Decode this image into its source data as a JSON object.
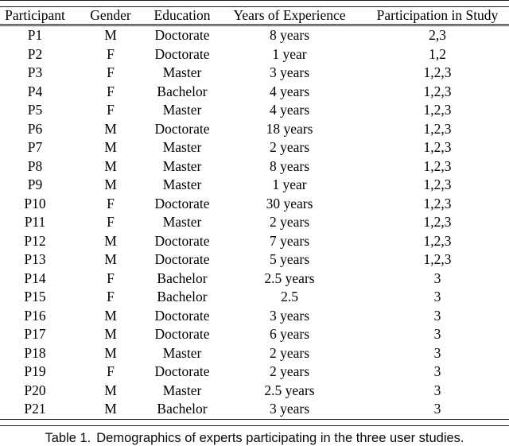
{
  "table": {
    "columns": [
      "Participant",
      "Gender",
      "Education",
      "Years of Experience",
      "Participation in Study"
    ],
    "rows": [
      [
        "P1",
        "M",
        "Doctorate",
        "8 years",
        "2,3"
      ],
      [
        "P2",
        "F",
        "Doctorate",
        "1 year",
        "1,2"
      ],
      [
        "P3",
        "F",
        "Master",
        "3 years",
        "1,2,3"
      ],
      [
        "P4",
        "F",
        "Bachelor",
        "4 years",
        "1,2,3"
      ],
      [
        "P5",
        "F",
        "Master",
        "4 years",
        "1,2,3"
      ],
      [
        "P6",
        "M",
        "Doctorate",
        "18 years",
        "1,2,3"
      ],
      [
        "P7",
        "M",
        "Master",
        "2 years",
        "1,2,3"
      ],
      [
        "P8",
        "M",
        "Master",
        "8 years",
        "1,2,3"
      ],
      [
        "P9",
        "M",
        "Master",
        "1 year",
        "1,2,3"
      ],
      [
        "P10",
        "F",
        "Doctorate",
        "30 years",
        "1,2,3"
      ],
      [
        "P11",
        "F",
        "Master",
        "2 years",
        "1,2,3"
      ],
      [
        "P12",
        "M",
        "Doctorate",
        "7 years",
        "1,2,3"
      ],
      [
        "P13",
        "M",
        "Doctorate",
        "5 years",
        "1,2,3"
      ],
      [
        "P14",
        "F",
        "Bachelor",
        "2.5 years",
        "3"
      ],
      [
        "P15",
        "F",
        "Bachelor",
        "2.5",
        "3"
      ],
      [
        "P16",
        "M",
        "Doctorate",
        "3 years",
        "3"
      ],
      [
        "P17",
        "M",
        "Doctorate",
        "6 years",
        "3"
      ],
      [
        "P18",
        "M",
        "Master",
        "2 years",
        "3"
      ],
      [
        "P19",
        "F",
        "Doctorate",
        "2 years",
        "3"
      ],
      [
        "P20",
        "M",
        "Master",
        "2.5 years",
        "3"
      ],
      [
        "P21",
        "M",
        "Bachelor",
        "3 years",
        "3"
      ]
    ]
  },
  "caption": {
    "label": "Table 1.",
    "text": "Demographics of experts participating in the three user studies."
  }
}
